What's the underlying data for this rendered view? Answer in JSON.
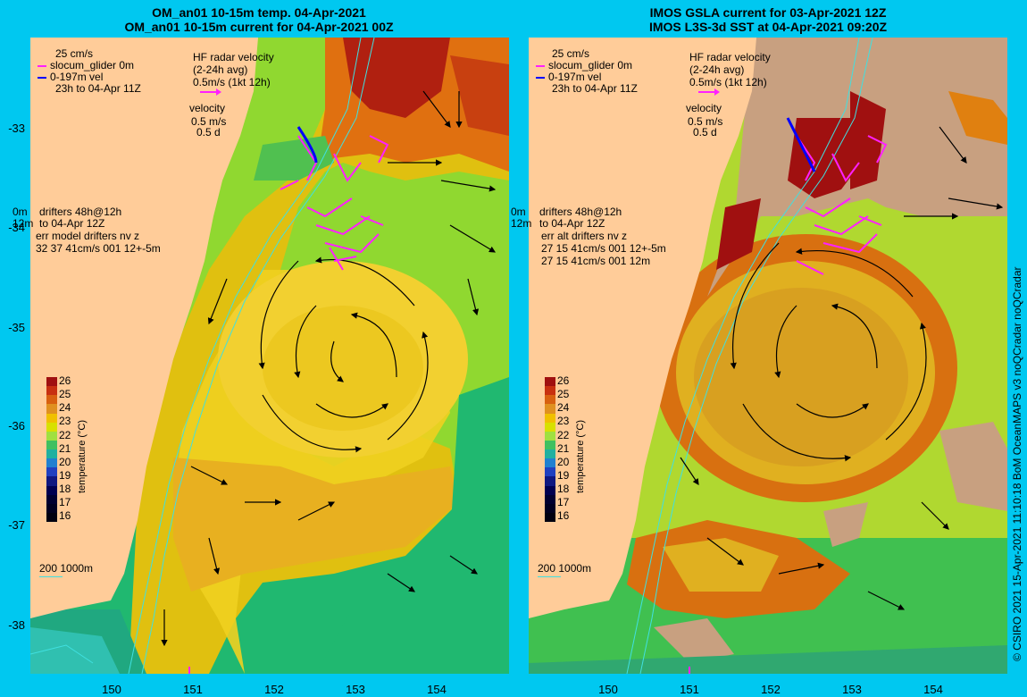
{
  "left": {
    "title_line1": "OM_an01 10-15m temp. 04-Apr-2021",
    "title_line2": "OM_an01 10-15m current for 04-Apr-2021 00Z",
    "legend_scale": "25 cm/s",
    "legend_glider": "slocum_glider 0m",
    "legend_vel": "0-197m vel",
    "legend_time": "23h to 04-Apr 11Z",
    "hf_line1": "HF radar velocity",
    "hf_line2": "(2-24h avg)",
    "hf_line3": "0.5m/s (1kt 12h)",
    "vel_line1": "velocity",
    "vel_line2": "0.5 m/s",
    "vel_line3": "0.5 d",
    "drift_0m": "0m",
    "drift_12m": "12m",
    "drift_line1": "drifters 48h@12h",
    "drift_line2": "to 04-Apr 12Z",
    "drift_line3": "err model drifters nv z",
    "drift_line4": "32 37 41cm/s 001 12+-5m",
    "drift_line5": "",
    "isobath": "200  1000m"
  },
  "right": {
    "title_line1": "IMOS GSLA current for 03-Apr-2021 12Z",
    "title_line2": "IMOS L3S-3d SST at 04-Apr-2021 09:20Z",
    "legend_scale": "25 cm/s",
    "legend_glider": "slocum_glider 0m",
    "legend_vel": "0-197m vel",
    "legend_time": "23h to 04-Apr 11Z",
    "hf_line1": "HF radar velocity",
    "hf_line2": "(2-24h avg)",
    "hf_line3": "0.5m/s (1kt 12h)",
    "vel_line1": "velocity",
    "vel_line2": "0.5 m/s",
    "vel_line3": "0.5 d",
    "drift_0m": "0m",
    "drift_12m": "12m",
    "drift_line1": "drifters 48h@12h",
    "drift_line2": "to 04-Apr 12Z",
    "drift_line3": "err alt drifters nv z",
    "drift_line4": "27 15 41cm/s 001 12+-5m",
    "drift_line5": "27 15 41cm/s 001 12m",
    "isobath": "200  1000m"
  },
  "colorbar": {
    "title": "temperature (°C)",
    "ticks": [
      "26",
      "25",
      "24",
      "23",
      "22",
      "21",
      "20",
      "19",
      "18",
      "17",
      "16"
    ],
    "colors": [
      "#a01010",
      "#c83010",
      "#d86010",
      "#e09020",
      "#f0c000",
      "#d8e000",
      "#a0e040",
      "#40c060",
      "#20b0a0",
      "#2080d0",
      "#2040c0",
      "#101880",
      "#000050",
      "#000030",
      "#000020",
      "#000010"
    ]
  },
  "lat_labels": [
    "-33",
    "-34",
    "-35",
    "-36",
    "-37",
    "-38"
  ],
  "lon_labels": [
    "150",
    "151",
    "152",
    "153",
    "154"
  ],
  "credit": "© CSIRO 2021   15-Apr-2021 11:10:18 BoM OceanMAPS v3 noQCradar noQCradar",
  "colors": {
    "land": "#ffcc99",
    "background": "#00c8f0",
    "drifter": "#ff20ff",
    "glider": "#0000ff",
    "isobath": "#40e0e0"
  }
}
